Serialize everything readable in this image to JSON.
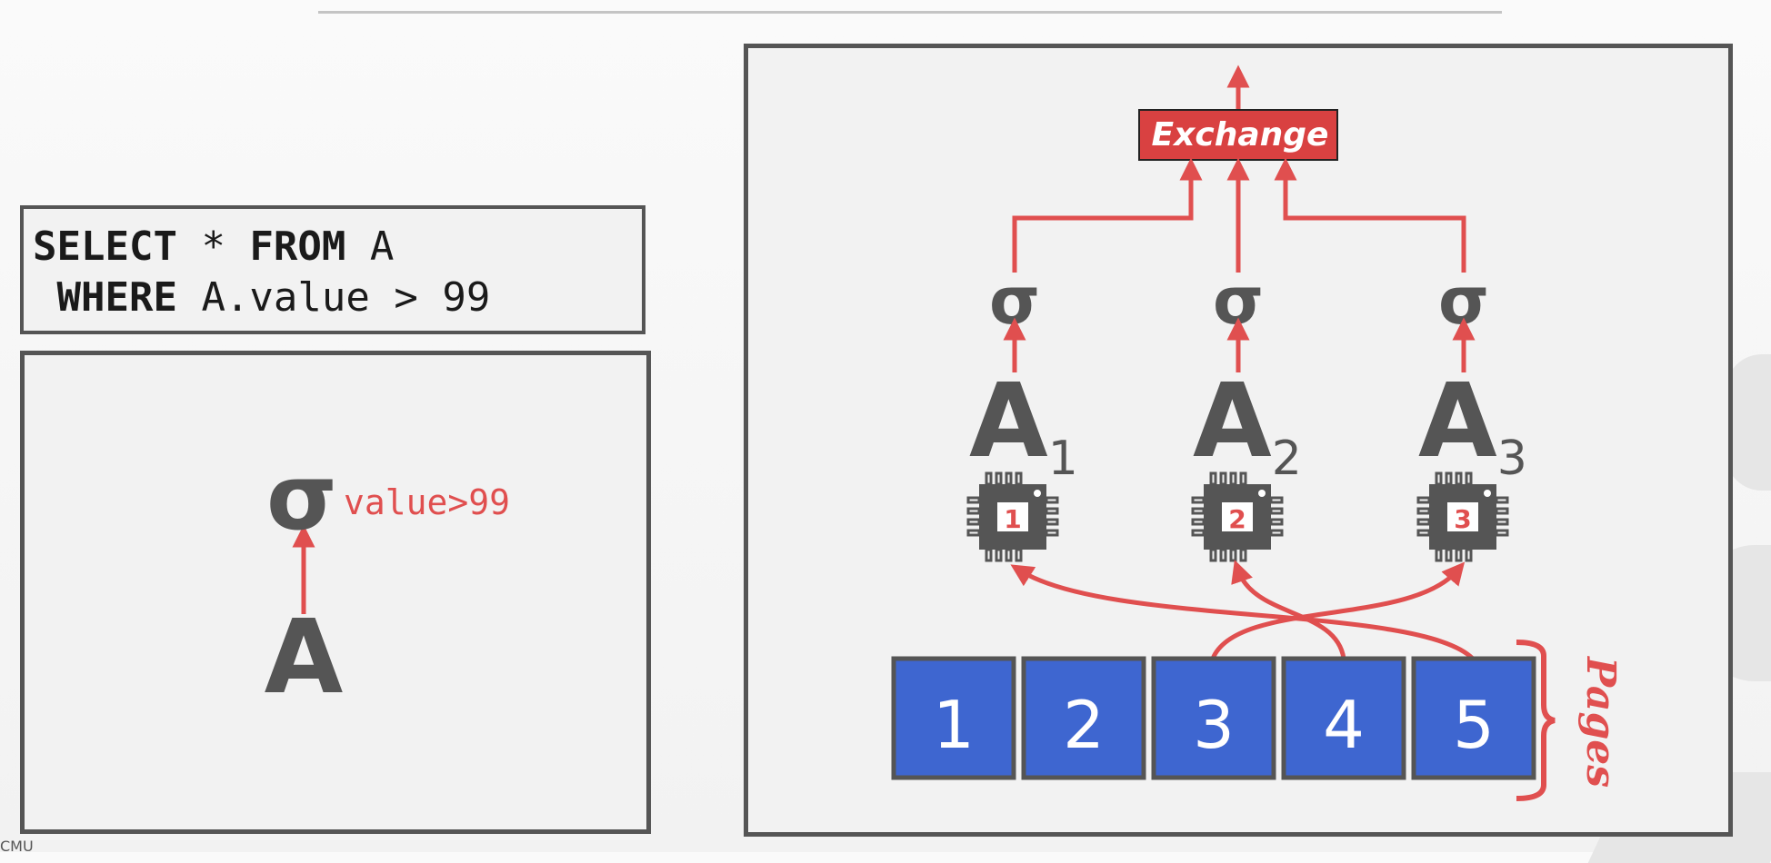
{
  "query": {
    "select_kw": "SELECT",
    "select_rest": " * ",
    "from_kw": "FROM",
    "from_rest": " A",
    "where_kw": "WHERE",
    "where_rest": " A.value > 99"
  },
  "logical_plan": {
    "operator_symbol": "σ",
    "predicate": "value>99",
    "table": "A"
  },
  "parallel_plan": {
    "exchange_label": "Exchange",
    "sigma_symbol": "σ",
    "table_name": "A",
    "partitions": [
      {
        "subscript": "1",
        "core": "1"
      },
      {
        "subscript": "2",
        "core": "2"
      },
      {
        "subscript": "3",
        "core": "3"
      }
    ],
    "pages": [
      "1",
      "2",
      "3",
      "4",
      "5"
    ],
    "pages_label": "Pages"
  },
  "colors": {
    "accent_red": "#e04f4f",
    "page_blue": "#3e66d0",
    "dark_gray": "#555555"
  },
  "footer": {
    "text": "CMU"
  }
}
